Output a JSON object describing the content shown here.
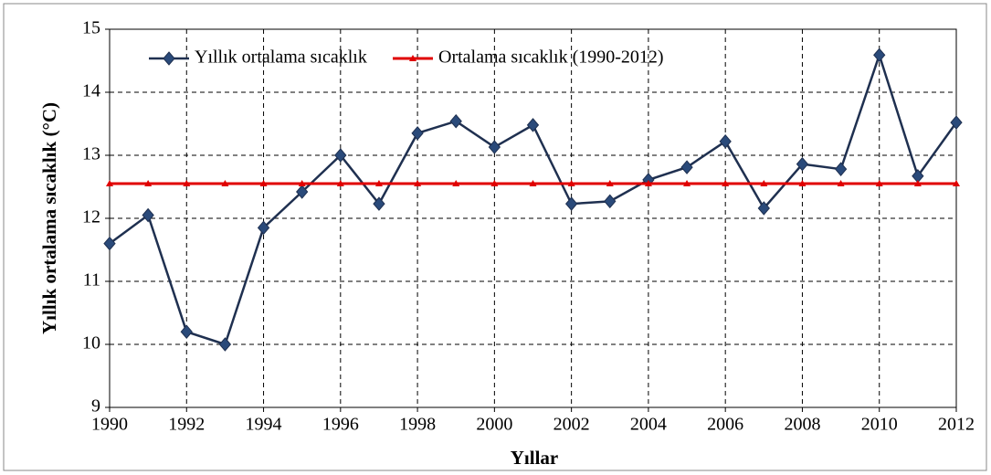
{
  "chart_data": {
    "type": "line",
    "x": [
      1990,
      1991,
      1992,
      1993,
      1994,
      1995,
      1996,
      1997,
      1998,
      1999,
      2000,
      2001,
      2002,
      2003,
      2004,
      2005,
      2006,
      2007,
      2008,
      2009,
      2010,
      2011,
      2012
    ],
    "series": [
      {
        "name": "Yıllık ortalama sıcaklık",
        "color": "#1f3050",
        "marker": "diamond",
        "values": [
          11.6,
          12.05,
          10.2,
          10.0,
          11.85,
          12.42,
          13.0,
          12.23,
          13.35,
          13.54,
          13.13,
          13.48,
          12.23,
          12.27,
          12.61,
          12.81,
          13.22,
          12.16,
          12.86,
          12.78,
          14.59,
          12.67,
          13.52
        ]
      },
      {
        "name": "Ortalama sıcaklık (1990-2012)",
        "color": "#e00000",
        "marker": "triangle",
        "values": [
          12.55,
          12.55,
          12.55,
          12.55,
          12.55,
          12.55,
          12.55,
          12.55,
          12.55,
          12.55,
          12.55,
          12.55,
          12.55,
          12.55,
          12.55,
          12.55,
          12.55,
          12.55,
          12.55,
          12.55,
          12.55,
          12.55,
          12.55
        ]
      }
    ],
    "xlabel": "Yıllar",
    "ylabel": "Yıllık ortalama sıcaklık (°C)",
    "xlim": [
      1990,
      2012
    ],
    "xticks": [
      1990,
      1992,
      1994,
      1996,
      1998,
      2000,
      2002,
      2004,
      2006,
      2008,
      2010,
      2012
    ],
    "ylim": [
      9,
      15
    ],
    "yticks": [
      9,
      10,
      11,
      12,
      13,
      14,
      15
    ],
    "grid": true,
    "legend": "top"
  }
}
